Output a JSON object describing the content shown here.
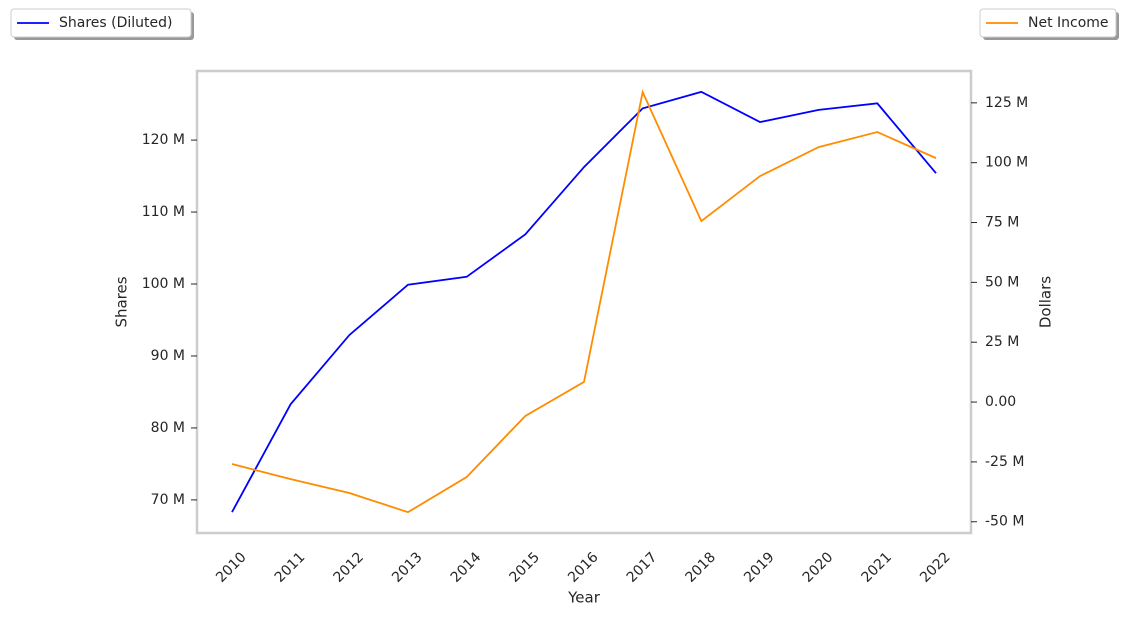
{
  "chart_data": {
    "type": "line",
    "x_label": "Year",
    "y_label": "Shares",
    "y2_label": "Dollars",
    "categories": [
      "2010",
      "2011",
      "2012",
      "2013",
      "2014",
      "2015",
      "2016",
      "2017",
      "2018",
      "2019",
      "2020",
      "2021",
      "2022"
    ],
    "series": [
      {
        "name": "Shares (Diluted)",
        "color": "#0000ff",
        "values": [
          68.3,
          83.3,
          92.9,
          99.9,
          101.0,
          106.9,
          116.25,
          124.4,
          126.7,
          122.5,
          124.2,
          125.1,
          115.4
        ]
      },
      {
        "name": "Net Income",
        "color": "#ff8c00",
        "axis": "y2",
        "values": [
          -25.9,
          -32.2,
          -38.0,
          -46.0,
          -31.3,
          -5.8,
          8.4,
          129.5,
          75.6,
          94.4,
          106.5,
          112.8,
          101.9
        ]
      }
    ],
    "ylim": [
      65.4,
      129.6
    ],
    "yticks": [
      {
        "value": 70,
        "label": "70 M"
      },
      {
        "value": 80,
        "label": "80 M"
      },
      {
        "value": 90,
        "label": "90 M"
      },
      {
        "value": 100,
        "label": "100 M"
      },
      {
        "value": 110,
        "label": "110 M"
      },
      {
        "value": 120,
        "label": "120 M"
      }
    ],
    "y2lim": [
      -54.7,
      138.3
    ],
    "y2ticks": [
      {
        "value": -50,
        "label": "-50 M"
      },
      {
        "value": -25,
        "label": "-25 M"
      },
      {
        "value": 0,
        "label": "0.00"
      },
      {
        "value": 25,
        "label": "25 M"
      },
      {
        "value": 50,
        "label": "50 M"
      },
      {
        "value": 75,
        "label": "75 M"
      },
      {
        "value": 100,
        "label": "100 M"
      },
      {
        "value": 125,
        "label": "125 M"
      }
    ],
    "grid": false
  }
}
